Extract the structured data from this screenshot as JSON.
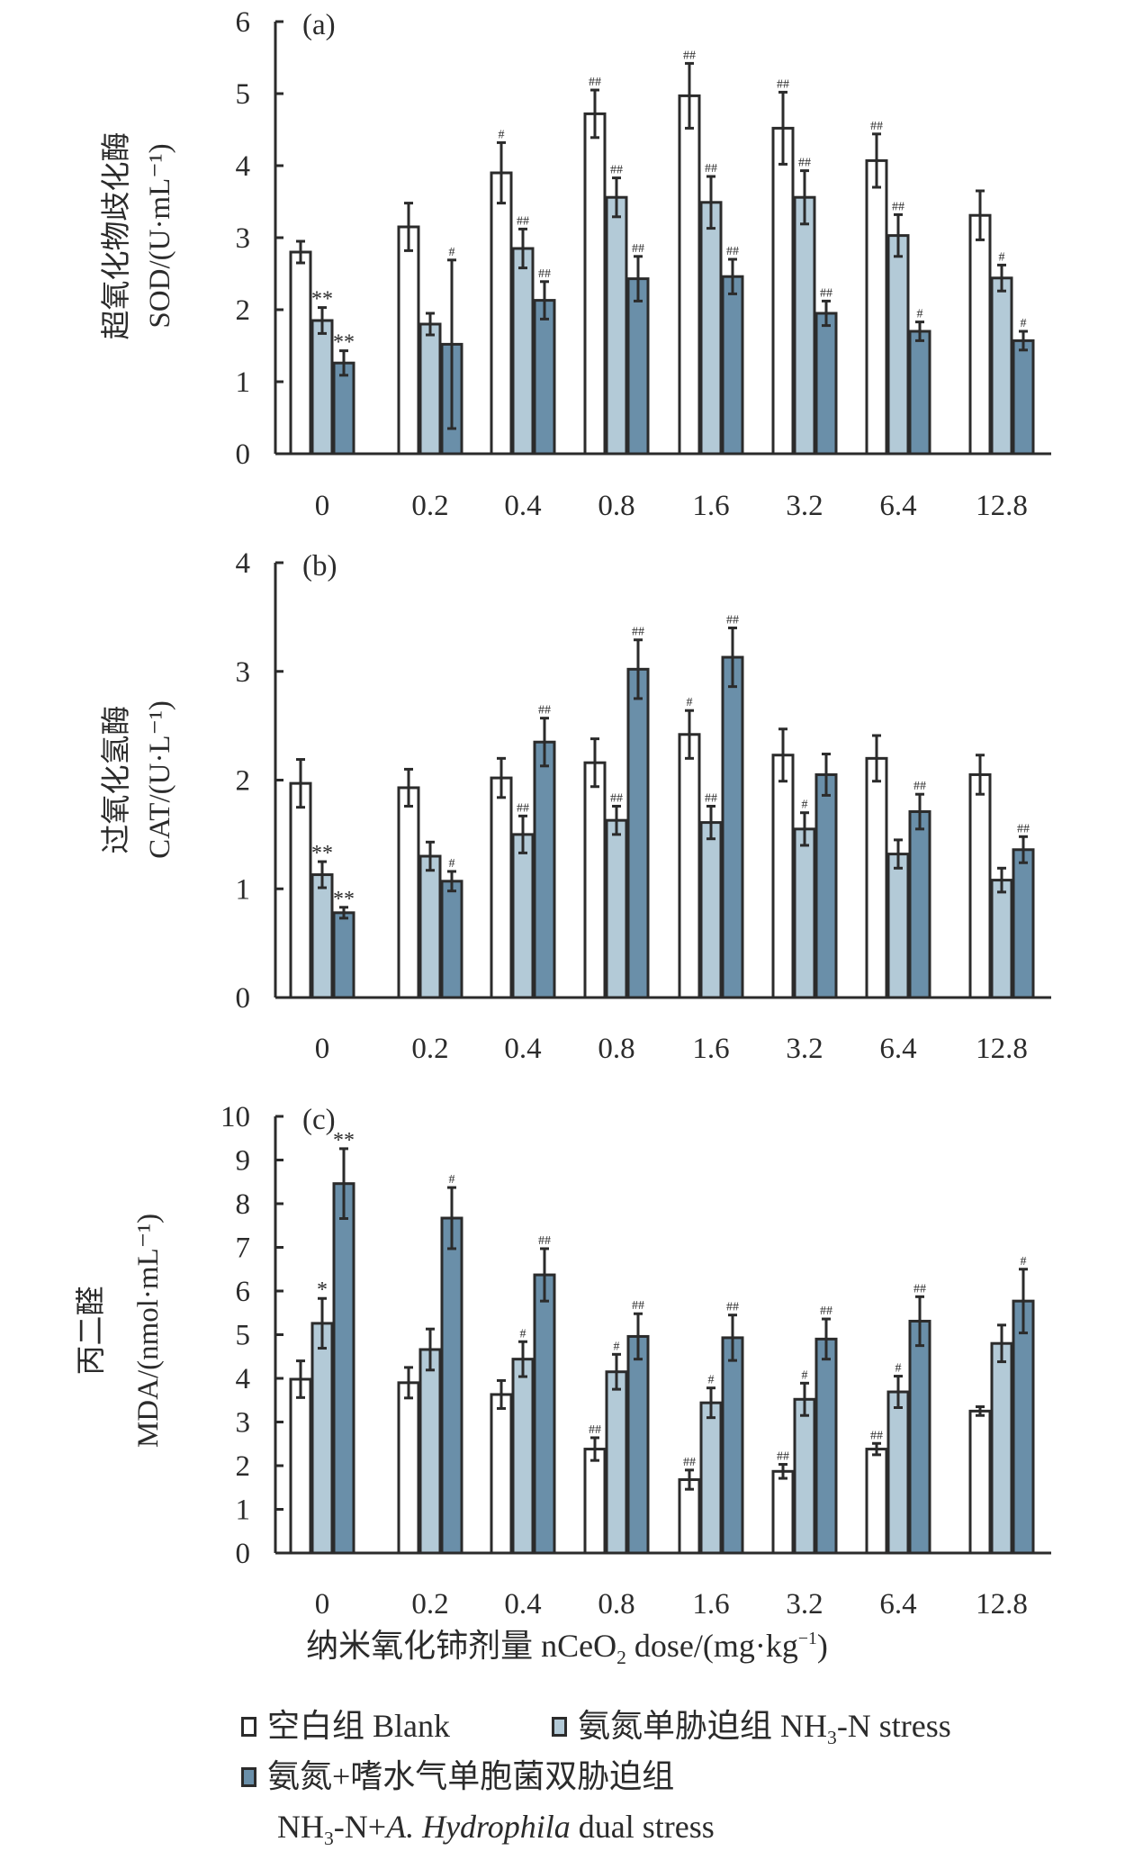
{
  "chart_data": [
    {
      "type": "bar",
      "panel_label": "(a)",
      "ylabel_cn": "超氧化物歧化酶",
      "ylabel": "SOD/(U·mL⁻¹)",
      "ylim": [
        0,
        6
      ],
      "yticks": [
        0,
        1,
        2,
        3,
        4,
        5,
        6
      ],
      "categories": [
        "0",
        "0.2",
        "0.4",
        "0.8",
        "1.6",
        "3.2",
        "6.4",
        "12.8"
      ],
      "series": [
        {
          "name": "空白组 Blank",
          "values": [
            2.8,
            3.15,
            3.9,
            4.72,
            4.97,
            4.52,
            4.07,
            3.31
          ],
          "errors": [
            0.15,
            0.33,
            0.42,
            0.33,
            0.45,
            0.5,
            0.37,
            0.34
          ],
          "sig": [
            "",
            "",
            "#",
            "##",
            "##",
            "##",
            "##",
            ""
          ]
        },
        {
          "name": "氨氮单胁迫组 NH3-N stress",
          "values": [
            1.85,
            1.8,
            2.85,
            3.56,
            3.49,
            3.56,
            3.03,
            2.44
          ],
          "errors": [
            0.18,
            0.15,
            0.27,
            0.27,
            0.36,
            0.37,
            0.29,
            0.18
          ],
          "sig": [
            "**",
            "",
            "##",
            "##",
            "##",
            "##",
            "##",
            "#"
          ]
        },
        {
          "name": "氨氮+嗜水气单胞菌双胁迫组 NH3-N+A. Hydrophila dual stress",
          "values": [
            1.26,
            1.52,
            2.13,
            2.43,
            2.46,
            1.95,
            1.7,
            1.57
          ],
          "errors": [
            0.17,
            1.17,
            0.26,
            0.31,
            0.24,
            0.17,
            0.13,
            0.13
          ],
          "sig": [
            "**",
            "#",
            "##",
            "##",
            "##",
            "##",
            "#",
            "#"
          ]
        }
      ],
      "grid": false
    },
    {
      "type": "bar",
      "panel_label": "(b)",
      "ylabel_cn": "过氧化氢酶",
      "ylabel": "CAT/(U·L⁻¹)",
      "ylim": [
        0,
        4
      ],
      "yticks": [
        0,
        1,
        2,
        3,
        4
      ],
      "categories": [
        "0",
        "0.2",
        "0.4",
        "0.8",
        "1.6",
        "3.2",
        "6.4",
        "12.8"
      ],
      "series": [
        {
          "name": "空白组 Blank",
          "values": [
            1.97,
            1.93,
            2.02,
            2.16,
            2.42,
            2.23,
            2.2,
            2.05
          ],
          "errors": [
            0.22,
            0.17,
            0.18,
            0.22,
            0.22,
            0.24,
            0.21,
            0.18
          ],
          "sig": [
            "",
            "",
            "",
            "",
            "#",
            "",
            "",
            ""
          ]
        },
        {
          "name": "氨氮单胁迫组 NH3-N stress",
          "values": [
            1.13,
            1.3,
            1.5,
            1.63,
            1.61,
            1.55,
            1.32,
            1.08
          ],
          "errors": [
            0.12,
            0.13,
            0.17,
            0.13,
            0.15,
            0.15,
            0.13,
            0.11
          ],
          "sig": [
            "**",
            "",
            "##",
            "##",
            "##",
            "#",
            "",
            ""
          ]
        },
        {
          "name": "氨氮+嗜水气单胞菌双胁迫组 NH3-N+A. Hydrophila dual stress",
          "values": [
            0.78,
            1.07,
            2.35,
            3.02,
            3.13,
            2.05,
            1.71,
            1.36
          ],
          "errors": [
            0.05,
            0.09,
            0.22,
            0.27,
            0.27,
            0.19,
            0.16,
            0.12
          ],
          "sig": [
            "**",
            "#",
            "##",
            "##",
            "##",
            "",
            "##",
            "##"
          ]
        }
      ],
      "grid": false
    },
    {
      "type": "bar",
      "panel_label": "(c)",
      "ylabel_cn": "丙二醛",
      "ylabel": "MDA/(nmol·mL⁻¹)",
      "ylim": [
        0,
        10
      ],
      "yticks": [
        0,
        1,
        2,
        3,
        4,
        5,
        6,
        7,
        8,
        9,
        10
      ],
      "categories": [
        "0",
        "0.2",
        "0.4",
        "0.8",
        "1.6",
        "3.2",
        "6.4",
        "12.8"
      ],
      "series": [
        {
          "name": "空白组 Blank",
          "values": [
            3.98,
            3.9,
            3.63,
            2.38,
            1.68,
            1.87,
            2.38,
            3.25
          ],
          "errors": [
            0.42,
            0.35,
            0.32,
            0.26,
            0.22,
            0.16,
            0.13,
            0.1
          ],
          "sig": [
            "",
            "",
            "",
            "##",
            "##",
            "##",
            "##",
            ""
          ]
        },
        {
          "name": "氨氮单胁迫组 NH3-N stress",
          "values": [
            5.26,
            4.66,
            4.44,
            4.15,
            3.44,
            3.52,
            3.69,
            4.8
          ],
          "errors": [
            0.57,
            0.47,
            0.4,
            0.4,
            0.34,
            0.37,
            0.36,
            0.42
          ],
          "sig": [
            "*",
            "",
            "#",
            "#",
            "#",
            "#",
            "#",
            ""
          ]
        },
        {
          "name": "氨氮+嗜水气单胞菌双胁迫组 NH3-N+A. Hydrophila dual stress",
          "values": [
            8.46,
            7.67,
            6.37,
            4.96,
            4.93,
            4.9,
            5.31,
            5.77
          ],
          "errors": [
            0.8,
            0.7,
            0.6,
            0.52,
            0.52,
            0.46,
            0.56,
            0.73
          ],
          "sig": [
            "**",
            "#",
            "##",
            "##",
            "##",
            "##",
            "##",
            "#"
          ]
        }
      ],
      "grid": false
    }
  ],
  "xaxis_title": {
    "cn": "纳米氧化铈剂量",
    "en_pre": "nCeO",
    "en_sub": "2",
    "en_post": "dose/(mg·kg",
    "en_sup": "−1",
    "en_end": ")"
  },
  "legend": [
    {
      "cn": "空白组",
      "en": "Blank",
      "color": "#ffffff"
    },
    {
      "cn": "氨氮单胁迫组",
      "en_pre": "NH",
      "en_sub": "3",
      "en_post": "-N stress",
      "color": "#b3cad7"
    },
    {
      "cn": "氨氮+嗜水气单胞菌双胁迫组",
      "en_pre": "NH",
      "en_sub": "3",
      "en_mid": "-N+",
      "en_italic": "A. Hydrophila",
      "en_post": " dual stress",
      "color": "#6a8fa9"
    }
  ],
  "colors": {
    "blank": "#ffffff",
    "nh3": "#b3cad7",
    "dual": "#6a8fa9",
    "outline": "#2b2b2b"
  }
}
